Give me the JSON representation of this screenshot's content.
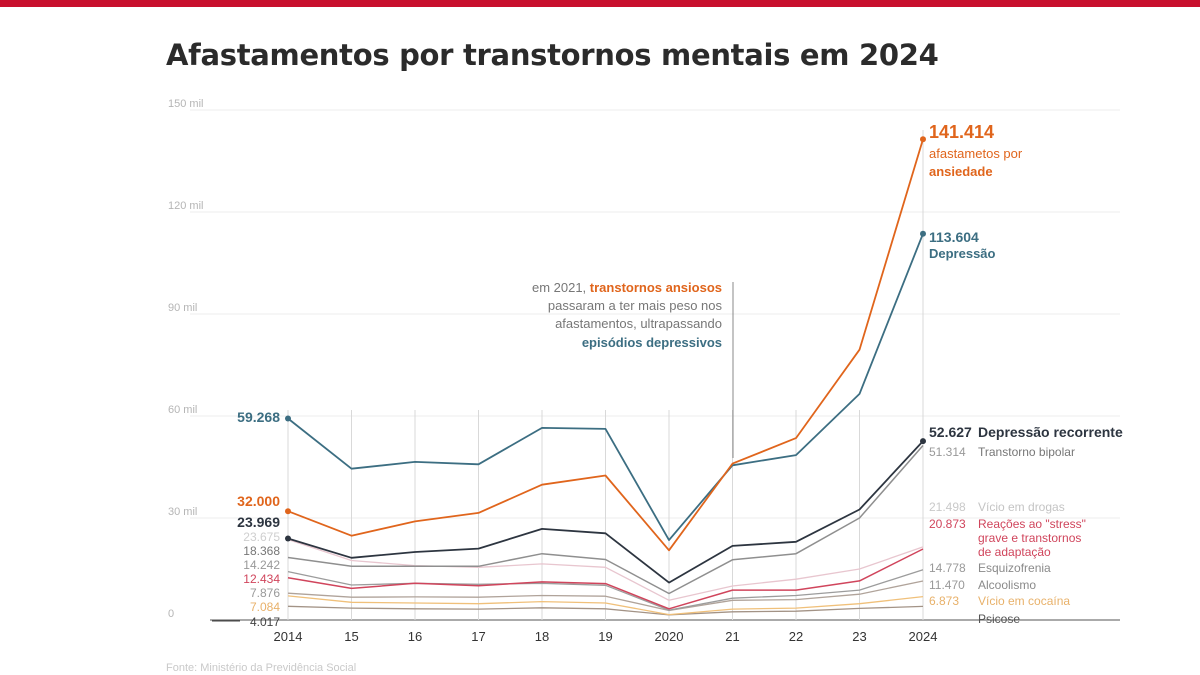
{
  "title": "Afastamentos por transtornos mentais em 2024",
  "annotation": {
    "line1_prefix": "em 2021, ",
    "line1_highlight": "transtornos ansiosos",
    "line2": "passaram a ter mais peso nos",
    "line3": "afastamentos, ultrapassando",
    "line4_highlight": "episódios depressivos"
  },
  "source": "Fonte: Ministério da Previdência Social",
  "colors": {
    "topbar": "#c8102e",
    "anxiety": "#e0651c",
    "depression": "#3c6e82",
    "recurrent": "#2d3540"
  },
  "chart_data": {
    "type": "line",
    "x": [
      "2014",
      "15",
      "16",
      "17",
      "18",
      "19",
      "2020",
      "21",
      "22",
      "23",
      "2024"
    ],
    "ylim": [
      0,
      150000
    ],
    "yticks": [
      {
        "value": 0,
        "label": "0"
      },
      {
        "value": 30000,
        "label": "30 mil"
      },
      {
        "value": 60000,
        "label": "60 mil"
      },
      {
        "value": 90000,
        "label": "90 mil"
      },
      {
        "value": 120000,
        "label": "120 mil"
      },
      {
        "value": 150000,
        "label": "150 mil"
      }
    ],
    "grid": true,
    "series": [
      {
        "name": "Psicose",
        "color": "#a39386",
        "width": 1.3,
        "values": [
          4017,
          3500,
          3300,
          3200,
          3600,
          3300,
          1500,
          2400,
          2600,
          3400,
          4000
        ],
        "start_label": "4.017",
        "end_label": "",
        "name_lines": [
          "Psicose"
        ],
        "end_y": 619,
        "name_color": "#555555",
        "name_bold": false,
        "marker": false
      },
      {
        "name": "Vício em cocaína",
        "color": "#f0c07a",
        "width": 1.3,
        "values": [
          7084,
          5200,
          5000,
          4800,
          5400,
          5000,
          1600,
          3200,
          3500,
          4800,
          6873
        ],
        "start_label": "7.084",
        "end_label": "6.873",
        "name_lines": [
          "Vício em cocaína"
        ],
        "end_y": 601,
        "name_color": "#e8b16a",
        "name_bold": false,
        "marker": false
      },
      {
        "name": "Alcoolismo",
        "color": "#b0a39a",
        "width": 1.3,
        "values": [
          7876,
          6700,
          6800,
          6700,
          7200,
          7000,
          2800,
          5800,
          6000,
          7600,
          11470
        ],
        "start_label": "7.876",
        "end_label": "11.470",
        "name_lines": [
          "Alcoolismo"
        ],
        "end_y": 585,
        "name_color": "#8a8a8a",
        "name_bold": false,
        "marker": false
      },
      {
        "name": "Esquizofrenia",
        "color": "#9c9c9c",
        "width": 1.3,
        "values": [
          14242,
          10300,
          10800,
          10500,
          10800,
          10200,
          2900,
          6400,
          7200,
          8800,
          14778
        ],
        "start_label": "14.242",
        "end_label": "14.778",
        "name_lines": [
          "Esquizofrenia"
        ],
        "end_y": 568,
        "name_color": "#8a8a8a",
        "name_bold": false,
        "marker": false
      },
      {
        "name": "Vício em drogas",
        "color": "#e8c6cf",
        "width": 1.3,
        "values": [
          23675,
          17500,
          16000,
          15500,
          16500,
          15500,
          5800,
          10000,
          12000,
          15000,
          21498
        ],
        "start_label": "23.675",
        "end_label": "21.498",
        "name_lines": [
          "Vício em drogas"
        ],
        "end_y": 507,
        "name_color": "#c4c4c4",
        "name_bold": false,
        "marker": false
      },
      {
        "name": "Reações ao \"stress\" grave e transtornos de adaptação",
        "color": "#d0455c",
        "width": 1.5,
        "values": [
          12434,
          9300,
          10800,
          10100,
          11200,
          10700,
          3300,
          8800,
          8800,
          11500,
          20873
        ],
        "start_label": "12.434",
        "end_label": "20.873",
        "name_lines": [
          "Reações ao \"stress\"",
          "grave e transtornos",
          "de adaptação"
        ],
        "end_y": 524,
        "name_color": "#d0455c",
        "name_bold": false,
        "marker": false
      },
      {
        "name": "Transtorno bipolar",
        "color": "#8f8f8f",
        "width": 1.5,
        "values": [
          18368,
          15800,
          15800,
          15800,
          19500,
          17800,
          7800,
          17700,
          19500,
          30000,
          51314
        ],
        "start_label": "18.368",
        "end_label": "51.314",
        "name_lines": [
          "Transtorno bipolar"
        ],
        "end_y": 452,
        "name_color": "#777777",
        "name_bold": false,
        "marker": false
      },
      {
        "name": "Depressão recorrente",
        "color": "#2d3540",
        "width": 1.8,
        "values": [
          23969,
          18300,
          20000,
          21000,
          26800,
          25500,
          11000,
          21800,
          23000,
          32500,
          52627
        ],
        "start_label": "23.969",
        "end_label": "52.627",
        "name_lines": [
          "Depressão recorrente"
        ],
        "end_y": 433,
        "name_color": "#2d3540",
        "name_bold": true,
        "marker": true
      },
      {
        "name": "Depressão",
        "color": "#3c6e82",
        "width": 1.8,
        "values": [
          59268,
          44500,
          46500,
          45800,
          56500,
          56200,
          23500,
          45500,
          48500,
          66500,
          113604
        ],
        "start_label": "59.268",
        "end_label": "113.604",
        "name_lines": [
          "Depressão"
        ],
        "end_y": 237,
        "name_color": "#3c6e82",
        "name_bold": true,
        "marker": true
      },
      {
        "name": "Ansiedade",
        "color": "#e0651c",
        "width": 1.8,
        "values": [
          32000,
          24800,
          29000,
          31500,
          39800,
          42500,
          20500,
          46000,
          53500,
          79500,
          141414
        ],
        "start_label": "32.000",
        "end_label": "141.414",
        "name_lines": [
          "afastametos por",
          "ansiedade"
        ],
        "end_y": 138,
        "name_color": "#e0651c",
        "name_bold": false,
        "marker": true
      }
    ]
  }
}
